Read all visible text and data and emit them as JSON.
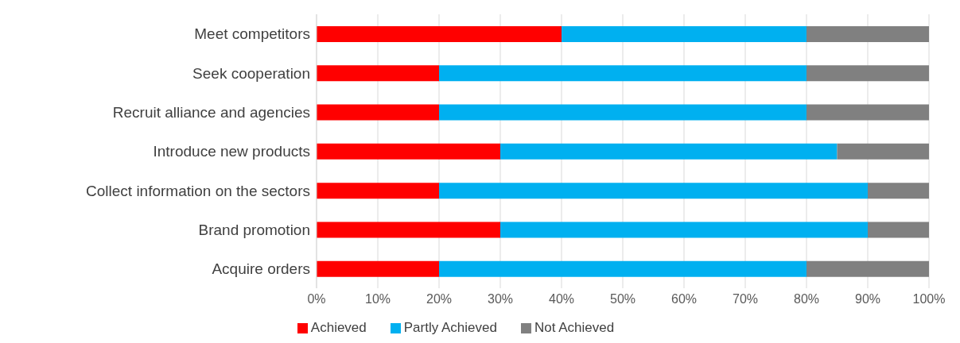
{
  "chart_data": {
    "type": "bar",
    "orientation": "horizontal",
    "stacked": true,
    "categories": [
      "Meet competitors",
      "Seek cooperation",
      "Recruit alliance and agencies",
      "Introduce new products",
      "Collect information on the sectors",
      "Brand promotion",
      "Acquire orders"
    ],
    "series": [
      {
        "name": "Achieved",
        "color": "#ff0000",
        "values": [
          40,
          20,
          20,
          30,
          20,
          30,
          20
        ]
      },
      {
        "name": "Partly Achieved",
        "color": "#00b0f0",
        "values": [
          40,
          60,
          60,
          55,
          70,
          60,
          60
        ]
      },
      {
        "name": "Not Achieved",
        "color": "#808080",
        "values": [
          20,
          20,
          20,
          15,
          10,
          10,
          20
        ]
      }
    ],
    "xlim": [
      0,
      100
    ],
    "xticks": [
      {
        "value": 0,
        "label": "0%"
      },
      {
        "value": 10,
        "label": "10%"
      },
      {
        "value": 20,
        "label": "20%"
      },
      {
        "value": 30,
        "label": "30%"
      },
      {
        "value": 40,
        "label": "40%"
      },
      {
        "value": 50,
        "label": "50%"
      },
      {
        "value": 60,
        "label": "60%"
      },
      {
        "value": 70,
        "label": "70%"
      },
      {
        "value": 80,
        "label": "80%"
      },
      {
        "value": 90,
        "label": "90%"
      },
      {
        "value": 100,
        "label": "100%"
      }
    ],
    "grid": "x",
    "legend": "bottom"
  }
}
